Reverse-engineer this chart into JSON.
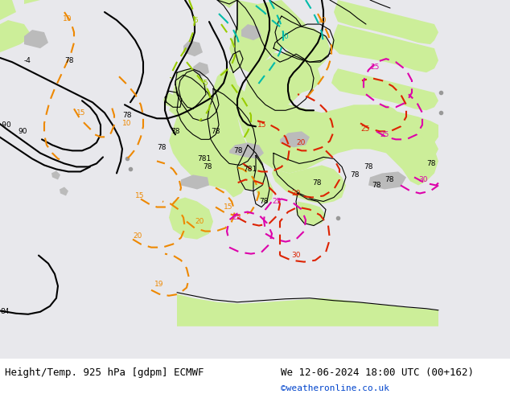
{
  "title_left": "Height/Temp. 925 hPa [gdpm] ECMWF",
  "title_right": "We 12-06-2024 18:00 UTC (00+162)",
  "credit": "©weatheronline.co.uk",
  "bg_color": "#ffffff",
  "land_color_light": "#ccee99",
  "land_color_gray": "#bbbbbb",
  "sea_color": "#e8e8ec",
  "contour_height_color": "#000000",
  "contour_orange_color": "#ee8800",
  "contour_red_color": "#dd2200",
  "contour_cyan_color": "#00bbaa",
  "contour_magenta_color": "#dd00aa",
  "contour_green_color": "#99cc00",
  "font_size_title": 9,
  "font_size_credit": 8
}
